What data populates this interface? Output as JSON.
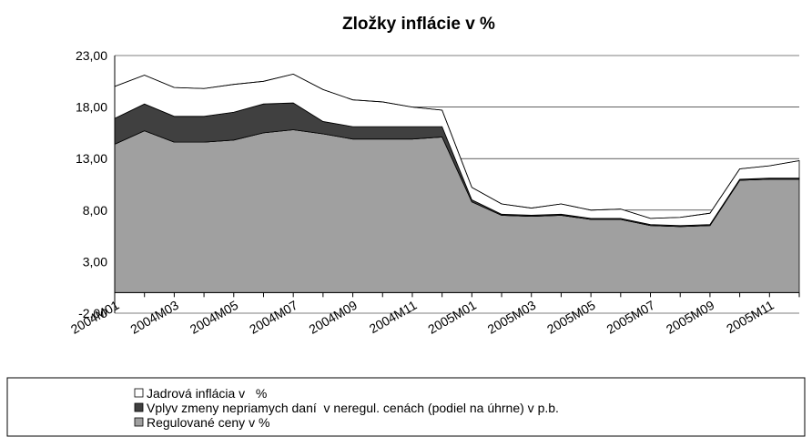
{
  "chart_data": {
    "type": "stacked_area",
    "title": "Zložky inflácie v %",
    "categories": [
      "2004M01",
      null,
      "2004M03",
      null,
      "2004M05",
      null,
      "2004M07",
      null,
      "2004M09",
      null,
      "2004M11",
      null,
      "2005M01",
      null,
      "2005M03",
      null,
      "2005M05",
      null,
      "2005M07",
      null,
      "2005M09",
      null,
      "2005M11",
      null
    ],
    "series": [
      {
        "name": "Regulované ceny v %",
        "color": "#a0a0a0",
        "values": [
          14.4,
          15.7,
          14.6,
          14.6,
          14.8,
          15.5,
          15.8,
          15.4,
          14.9,
          14.9,
          14.9,
          15.1,
          8.8,
          7.5,
          7.4,
          7.5,
          7.1,
          7.1,
          6.5,
          6.4,
          6.5,
          10.9,
          11.0,
          11.0
        ]
      },
      {
        "name": "Vplyv zmeny nepriamych daní  v neregul. cenách (podiel na úhrne) v p.b.",
        "color": "#404040",
        "values": [
          2.5,
          2.6,
          2.5,
          2.5,
          2.7,
          2.8,
          2.6,
          1.2,
          1.2,
          1.2,
          1.2,
          1.0,
          0.2,
          0.1,
          0.1,
          0.1,
          0.1,
          0.1,
          0.1,
          0.1,
          0.1,
          0.1,
          0.1,
          0.1
        ]
      },
      {
        "name": "Jadrová inflácia v   %",
        "color": "#ffffff",
        "values": [
          3.1,
          2.8,
          2.8,
          2.7,
          2.7,
          2.2,
          2.8,
          3.1,
          2.6,
          2.4,
          1.9,
          1.6,
          1.2,
          1.0,
          0.7,
          1.0,
          0.8,
          0.9,
          0.6,
          0.8,
          1.1,
          1.0,
          1.2,
          1.7
        ]
      }
    ],
    "ylim": [
      -2,
      23
    ],
    "yticks": [
      {
        "value": -2,
        "label": "-2,00"
      },
      {
        "value": 3,
        "label": "3,00"
      },
      {
        "value": 8,
        "label": "8,00"
      },
      {
        "value": 13,
        "label": "13,00"
      },
      {
        "value": 18,
        "label": "18,00"
      },
      {
        "value": 23,
        "label": "23,00"
      }
    ],
    "grid": true,
    "legend": "bottom"
  }
}
